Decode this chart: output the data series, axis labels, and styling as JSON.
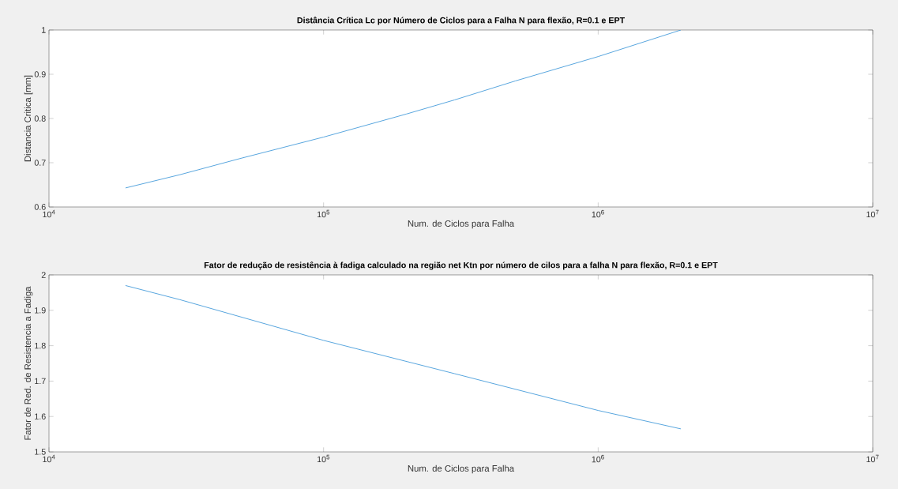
{
  "chart_data": [
    {
      "type": "line",
      "title": "Distância Crítica Lc por Número de Ciclos para a Falha N para flexão, R=0.1 e EPT",
      "xlabel": "Num. de Ciclos para Falha",
      "ylabel": "Distancia Critica [mm]",
      "log": "x",
      "xlim": [
        10000,
        10000000
      ],
      "ylim": [
        0.6,
        1
      ],
      "xticks": [
        {
          "value": 10000,
          "label": "10$^{4}$"
        },
        {
          "value": 100000,
          "label": "10$^{5}$"
        },
        {
          "value": 1000000,
          "label": "10$^{6}$"
        },
        {
          "value": 10000000,
          "label": "10$^{7}$"
        }
      ],
      "yticks": [
        0.6,
        0.7,
        0.8,
        0.9,
        1
      ],
      "series": [
        {
          "color": "#2f8fd6",
          "x": [
            19000,
            30000,
            50000,
            100000,
            200000,
            300000,
            500000,
            1000000,
            2000000
          ],
          "values": [
            0.643,
            0.673,
            0.71,
            0.758,
            0.81,
            0.842,
            0.885,
            0.94,
            1.0
          ]
        }
      ]
    },
    {
      "type": "line",
      "title": "Fator de redução de resistência à fadiga calculado na região net Ktn por número de cilos para a falha N para flexão, R=0.1 e EPT",
      "xlabel": "Num. de Ciclos para Falha",
      "ylabel": "Fator de Red. de Resistencia a Fadiga",
      "log": "x",
      "xlim": [
        10000,
        10000000
      ],
      "ylim": [
        1.5,
        2
      ],
      "xticks": [
        {
          "value": 10000,
          "label": "10$^{4}$"
        },
        {
          "value": 100000,
          "label": "10$^{5}$"
        },
        {
          "value": 1000000,
          "label": "10$^{6}$"
        },
        {
          "value": 10000000,
          "label": "10$^{7}$"
        }
      ],
      "yticks": [
        1.5,
        1.6,
        1.7,
        1.8,
        1.9,
        2
      ],
      "series": [
        {
          "color": "#2f8fd6",
          "x": [
            19000,
            30000,
            100000,
            300000,
            1000000,
            2000000
          ],
          "values": [
            1.97,
            1.93,
            1.815,
            1.721,
            1.617,
            1.565
          ]
        }
      ]
    }
  ]
}
